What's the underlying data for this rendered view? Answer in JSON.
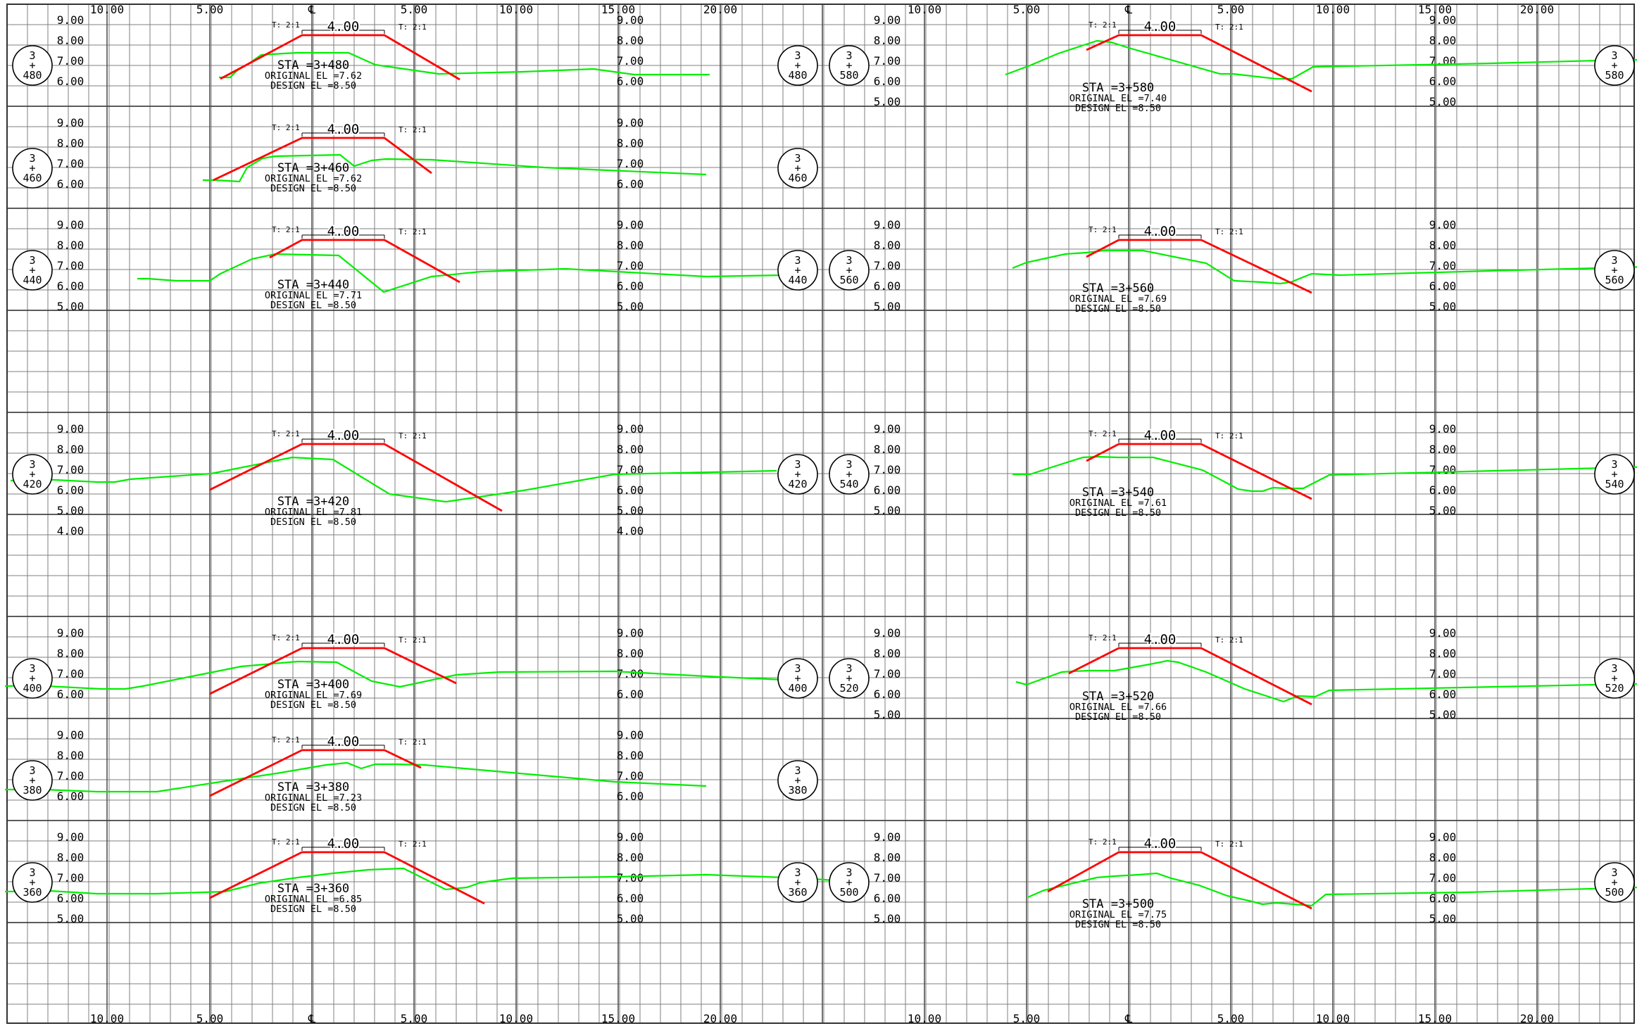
{
  "colors": {
    "background": "#ffffff",
    "grid": "#7f7f7f",
    "design": "#ff0000",
    "ground": "#00ee00",
    "text": "#000000"
  },
  "axis_labels": [
    "10.00",
    "5.00",
    "℄",
    "5.00",
    "10.00",
    "15.00",
    "20.00"
  ],
  "elevation_labels": [
    "9.00",
    "8.00",
    "7.00",
    "6.00",
    "5.00",
    "4.00"
  ],
  "slope_label": "T: 2:1",
  "top_width_label": "4.00",
  "sections": [
    {
      "station": "3+480",
      "station_line": "STA  =3+480",
      "original_line": "ORIGINAL  EL  =7.62",
      "design_line": "DESIGN  EL  =8.50",
      "bubble_top": "3",
      "bubble_mid": "+",
      "bubble_bottom": "480"
    },
    {
      "station": "3+460",
      "station_line": "STA  =3+460",
      "original_line": "ORIGINAL  EL  =7.62",
      "design_line": "DESIGN  EL  =8.50",
      "bubble_top": "3",
      "bubble_mid": "+",
      "bubble_bottom": "460"
    },
    {
      "station": "3+440",
      "station_line": "STA  =3+440",
      "original_line": "ORIGINAL  EL  =7.71",
      "design_line": "DESIGN  EL  =8.50",
      "bubble_top": "3",
      "bubble_mid": "+",
      "bubble_bottom": "440"
    },
    {
      "station": "3+420",
      "station_line": "STA  =3+420",
      "original_line": "ORIGINAL  EL  =7.81",
      "design_line": "DESIGN  EL  =8.50",
      "bubble_top": "3",
      "bubble_mid": "+",
      "bubble_bottom": "420"
    },
    {
      "station": "3+400",
      "station_line": "STA  =3+400",
      "original_line": "ORIGINAL  EL  =7.69",
      "design_line": "DESIGN  EL  =8.50",
      "bubble_top": "3",
      "bubble_mid": "+",
      "bubble_bottom": "400"
    },
    {
      "station": "3+380",
      "station_line": "STA  =3+380",
      "original_line": "ORIGINAL  EL  =7.23",
      "design_line": "DESIGN  EL  =8.50",
      "bubble_top": "3",
      "bubble_mid": "+",
      "bubble_bottom": "380"
    },
    {
      "station": "3+360",
      "station_line": "STA  =3+360",
      "original_line": "ORIGINAL  EL  =6.85",
      "design_line": "DESIGN  EL  =8.50",
      "bubble_top": "3",
      "bubble_mid": "+",
      "bubble_bottom": "360"
    },
    {
      "station": "3+580",
      "station_line": "STA  =3+580",
      "original_line": "ORIGINAL  EL  =7.40",
      "design_line": "DESIGN  EL  =8.50",
      "bubble_top": "3",
      "bubble_mid": "+",
      "bubble_bottom": "580"
    },
    {
      "station": "3+560",
      "station_line": "STA  =3+560",
      "original_line": "ORIGINAL  EL  =7.69",
      "design_line": "DESIGN  EL  =8.50",
      "bubble_top": "3",
      "bubble_mid": "+",
      "bubble_bottom": "560"
    },
    {
      "station": "3+540",
      "station_line": "STA  =3+540",
      "original_line": "ORIGINAL  EL  =7.61",
      "design_line": "DESIGN  EL  =8.50",
      "bubble_top": "3",
      "bubble_mid": "+",
      "bubble_bottom": "540"
    },
    {
      "station": "3+520",
      "station_line": "STA  =3+520",
      "original_line": "ORIGINAL  EL  =7.66",
      "design_line": "DESIGN  EL  =8.50",
      "bubble_top": "3",
      "bubble_mid": "+",
      "bubble_bottom": "520"
    },
    {
      "station": "3+500",
      "station_line": "STA  =3+500",
      "original_line": "ORIGINAL  EL  =7.75",
      "design_line": "DESIGN  EL  =8.50",
      "bubble_top": "3",
      "bubble_mid": "+",
      "bubble_bottom": "500"
    }
  ]
}
